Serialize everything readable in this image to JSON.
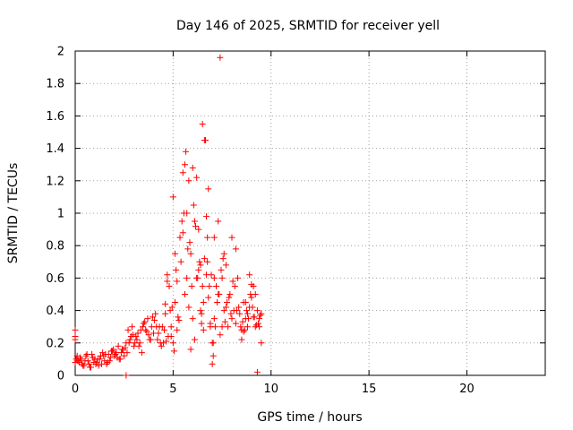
{
  "chart_data": {
    "type": "scatter",
    "title": "Day 146 of 2025, SRMTID for receiver yell",
    "xlabel": "GPS time / hours",
    "ylabel": "SRMTID / TECUs",
    "xlim": [
      0,
      24
    ],
    "ylim": [
      0,
      2
    ],
    "xticks": [
      0,
      5,
      10,
      15,
      20
    ],
    "xtick_labels": [
      "0",
      "5",
      "10",
      "15",
      "20"
    ],
    "yticks": [
      0,
      0.2,
      0.4,
      0.6,
      0.8,
      1,
      1.2,
      1.4,
      1.6,
      1.8,
      2
    ],
    "ytick_labels": [
      "0",
      "0.2",
      "0.4",
      "0.6",
      "0.8",
      "1",
      "1.2",
      "1.4",
      "1.6",
      "1.8",
      "2"
    ],
    "grid": true,
    "marker": "+",
    "color": "#ff0000",
    "series": [
      {
        "name": "yell",
        "x": [
          0.0,
          0.1,
          0.2,
          0.3,
          0.4,
          0.5,
          0.6,
          0.7,
          0.8,
          0.9,
          1.0,
          1.1,
          1.2,
          1.3,
          1.4,
          1.5,
          1.6,
          1.7,
          1.8,
          1.9,
          2.0,
          2.1,
          2.2,
          2.3,
          2.4,
          2.5,
          2.6,
          2.7,
          2.8,
          2.9,
          3.0,
          3.1,
          3.2,
          3.3,
          3.4,
          3.5,
          3.6,
          3.7,
          3.8,
          3.9,
          4.0,
          4.1,
          4.2,
          4.3,
          4.4,
          4.5,
          4.6,
          4.7,
          4.8,
          4.9,
          5.0,
          5.1,
          5.2,
          5.3,
          5.4,
          5.5,
          5.6,
          5.7,
          5.8,
          5.9,
          6.0,
          6.1,
          6.2,
          6.3,
          6.4,
          6.5,
          6.6,
          6.7,
          6.8,
          6.9,
          7.0,
          7.1,
          7.2,
          7.3,
          7.4,
          7.5,
          7.6,
          7.7,
          7.8,
          7.9,
          8.0,
          8.1,
          8.2,
          8.3,
          8.4,
          8.5,
          8.6,
          8.7,
          8.8,
          8.9,
          9.0,
          9.1,
          9.2,
          9.3,
          9.4,
          9.5,
          0.05,
          0.15,
          0.35,
          0.55,
          0.75,
          0.95,
          1.15,
          1.35,
          1.55,
          1.75,
          1.95,
          2.15,
          2.35,
          2.55,
          2.75,
          2.95,
          3.15,
          3.35,
          3.55,
          3.75,
          3.95,
          4.15,
          4.35,
          4.55,
          4.75,
          4.95,
          5.15,
          5.35,
          5.55,
          5.75,
          5.95,
          6.15,
          6.35,
          6.55,
          6.75,
          6.95,
          7.15,
          7.35,
          7.55,
          7.75,
          7.95,
          8.15,
          8.35,
          8.55,
          8.75,
          8.95,
          9.15,
          9.35,
          0.0,
          0.25,
          0.45,
          0.65,
          0.85,
          1.05,
          1.25,
          1.45,
          1.65,
          1.85,
          2.05,
          2.25,
          2.45,
          2.65,
          2.85,
          3.05,
          3.25,
          3.45,
          3.65,
          3.85,
          4.05,
          4.25,
          4.45,
          4.65,
          4.85,
          5.05,
          5.25,
          5.45,
          5.65,
          5.85,
          6.05,
          6.25,
          6.45,
          6.65,
          6.85,
          7.05,
          7.25,
          7.45,
          7.65,
          7.85,
          8.05,
          8.25,
          8.45,
          8.65,
          8.85,
          9.05,
          9.25,
          9.45,
          5.0,
          5.1,
          5.5,
          5.6,
          5.7,
          5.8,
          6.0,
          6.2,
          6.3,
          6.5,
          6.6,
          6.7,
          6.75,
          6.8,
          7.1,
          7.3,
          7.4,
          7.6,
          7.7,
          7.5,
          8.0,
          8.2,
          8.9,
          9.0,
          9.3,
          2.6,
          7.0,
          7.05,
          6.9,
          7.1,
          6.1,
          5.9,
          4.9,
          5.2,
          4.7,
          4.6,
          6.4,
          6.45,
          6.55,
          8.5,
          8.6,
          8.7,
          8.8,
          9.1,
          9.2,
          9.4,
          9.5,
          0.0,
          0.0,
          0.1
        ],
        "y": [
          0.28,
          0.12,
          0.08,
          0.1,
          0.06,
          0.09,
          0.13,
          0.07,
          0.05,
          0.11,
          0.1,
          0.08,
          0.06,
          0.12,
          0.14,
          0.09,
          0.07,
          0.13,
          0.11,
          0.15,
          0.12,
          0.14,
          0.18,
          0.1,
          0.16,
          0.12,
          0.2,
          0.28,
          0.22,
          0.3,
          0.18,
          0.24,
          0.26,
          0.2,
          0.14,
          0.32,
          0.28,
          0.35,
          0.22,
          0.3,
          0.26,
          0.38,
          0.22,
          0.3,
          0.18,
          0.2,
          0.38,
          0.62,
          0.55,
          0.3,
          0.2,
          0.45,
          0.58,
          0.34,
          0.7,
          0.88,
          0.5,
          0.6,
          0.42,
          0.75,
          0.35,
          0.95,
          0.6,
          0.65,
          0.4,
          0.55,
          0.72,
          0.62,
          0.48,
          0.3,
          0.2,
          0.35,
          0.55,
          0.5,
          0.25,
          0.6,
          0.4,
          0.42,
          0.3,
          0.5,
          0.35,
          0.4,
          0.32,
          0.6,
          0.38,
          0.28,
          0.45,
          0.35,
          0.3,
          0.42,
          0.48,
          0.36,
          0.3,
          0.4,
          0.35,
          0.38,
          0.1,
          0.09,
          0.07,
          0.12,
          0.05,
          0.08,
          0.1,
          0.07,
          0.13,
          0.09,
          0.16,
          0.11,
          0.14,
          0.17,
          0.2,
          0.25,
          0.22,
          0.28,
          0.33,
          0.25,
          0.36,
          0.3,
          0.2,
          0.28,
          0.24,
          0.42,
          0.65,
          0.85,
          1.0,
          0.78,
          0.55,
          0.92,
          0.7,
          0.45,
          0.85,
          0.62,
          0.3,
          0.5,
          0.72,
          0.45,
          0.38,
          0.55,
          0.42,
          0.33,
          0.4,
          0.5,
          0.36,
          0.32,
          0.08,
          0.11,
          0.06,
          0.09,
          0.13,
          0.07,
          0.1,
          0.12,
          0.08,
          0.15,
          0.13,
          0.1,
          0.16,
          0.14,
          0.24,
          0.2,
          0.18,
          0.3,
          0.27,
          0.22,
          0.34,
          0.26,
          0.3,
          0.21,
          0.4,
          0.15,
          0.36,
          0.95,
          1.38,
          0.82,
          1.05,
          0.6,
          0.38,
          1.45,
          0.55,
          0.2,
          0.45,
          0.65,
          0.33,
          0.48,
          0.58,
          0.4,
          0.3,
          0.28,
          0.35,
          0.42,
          0.31,
          0.37,
          1.1,
          0.75,
          1.25,
          1.3,
          1.0,
          1.2,
          1.28,
          1.22,
          0.9,
          1.55,
          1.45,
          0.98,
          0.7,
          1.15,
          0.85,
          0.95,
          1.96,
          0.75,
          0.68,
          0.3,
          0.85,
          0.78,
          0.62,
          0.56,
          0.02,
          0.0,
          0.07,
          0.12,
          0.32,
          0.6,
          0.22,
          0.16,
          0.24,
          0.28,
          0.58,
          0.44,
          0.68,
          0.32,
          0.28,
          0.22,
          0.27,
          0.45,
          0.38,
          0.55,
          0.5,
          0.3,
          0.2,
          0.24,
          0.22,
          0.09
        ]
      }
    ]
  }
}
